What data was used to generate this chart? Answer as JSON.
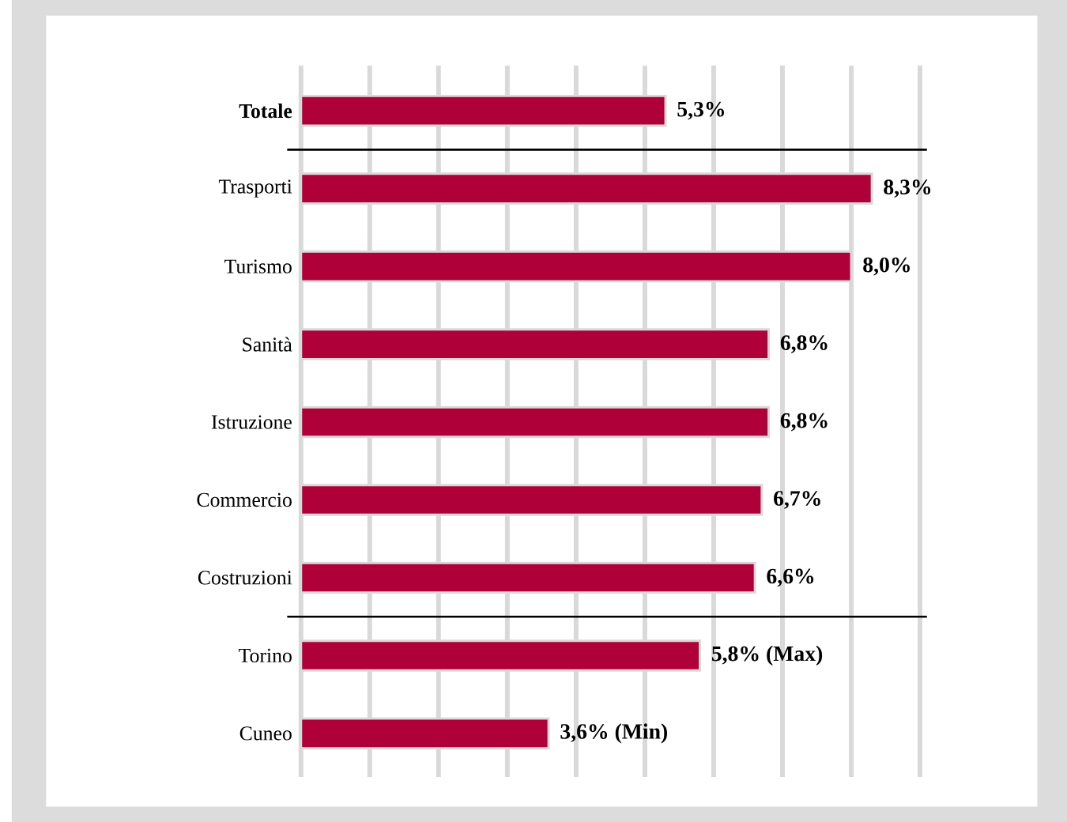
{
  "chart_data": {
    "type": "bar",
    "orientation": "horizontal",
    "categories": [
      "Totale",
      "Trasporti",
      "Turismo",
      "Sanità",
      "Istruzione",
      "Commercio",
      "Costruzioni",
      "Torino",
      "Cuneo"
    ],
    "values": [
      5.3,
      8.3,
      8.0,
      6.8,
      6.8,
      6.7,
      6.6,
      5.8,
      3.6
    ],
    "value_labels": [
      "5,3%",
      "8,3%",
      "8,0%",
      "6,8%",
      "6,8%",
      "6,7%",
      "6,6%",
      "5,8% (Max)",
      "3,6% (Min)"
    ],
    "color": "#b0003a",
    "xlim": [
      0,
      9
    ],
    "xticks": [
      {
        "value": 0,
        "label": null
      },
      {
        "value": 1,
        "label": null
      },
      {
        "value": 2,
        "label": null
      },
      {
        "value": 3,
        "label": null
      },
      {
        "value": 4,
        "label": null
      },
      {
        "value": 5,
        "label": null
      },
      {
        "value": 6,
        "label": null
      },
      {
        "value": 7,
        "label": null
      },
      {
        "value": 8,
        "label": null
      },
      {
        "value": 9,
        "label": null
      }
    ],
    "tick_labels": "y",
    "grid": "x"
  }
}
